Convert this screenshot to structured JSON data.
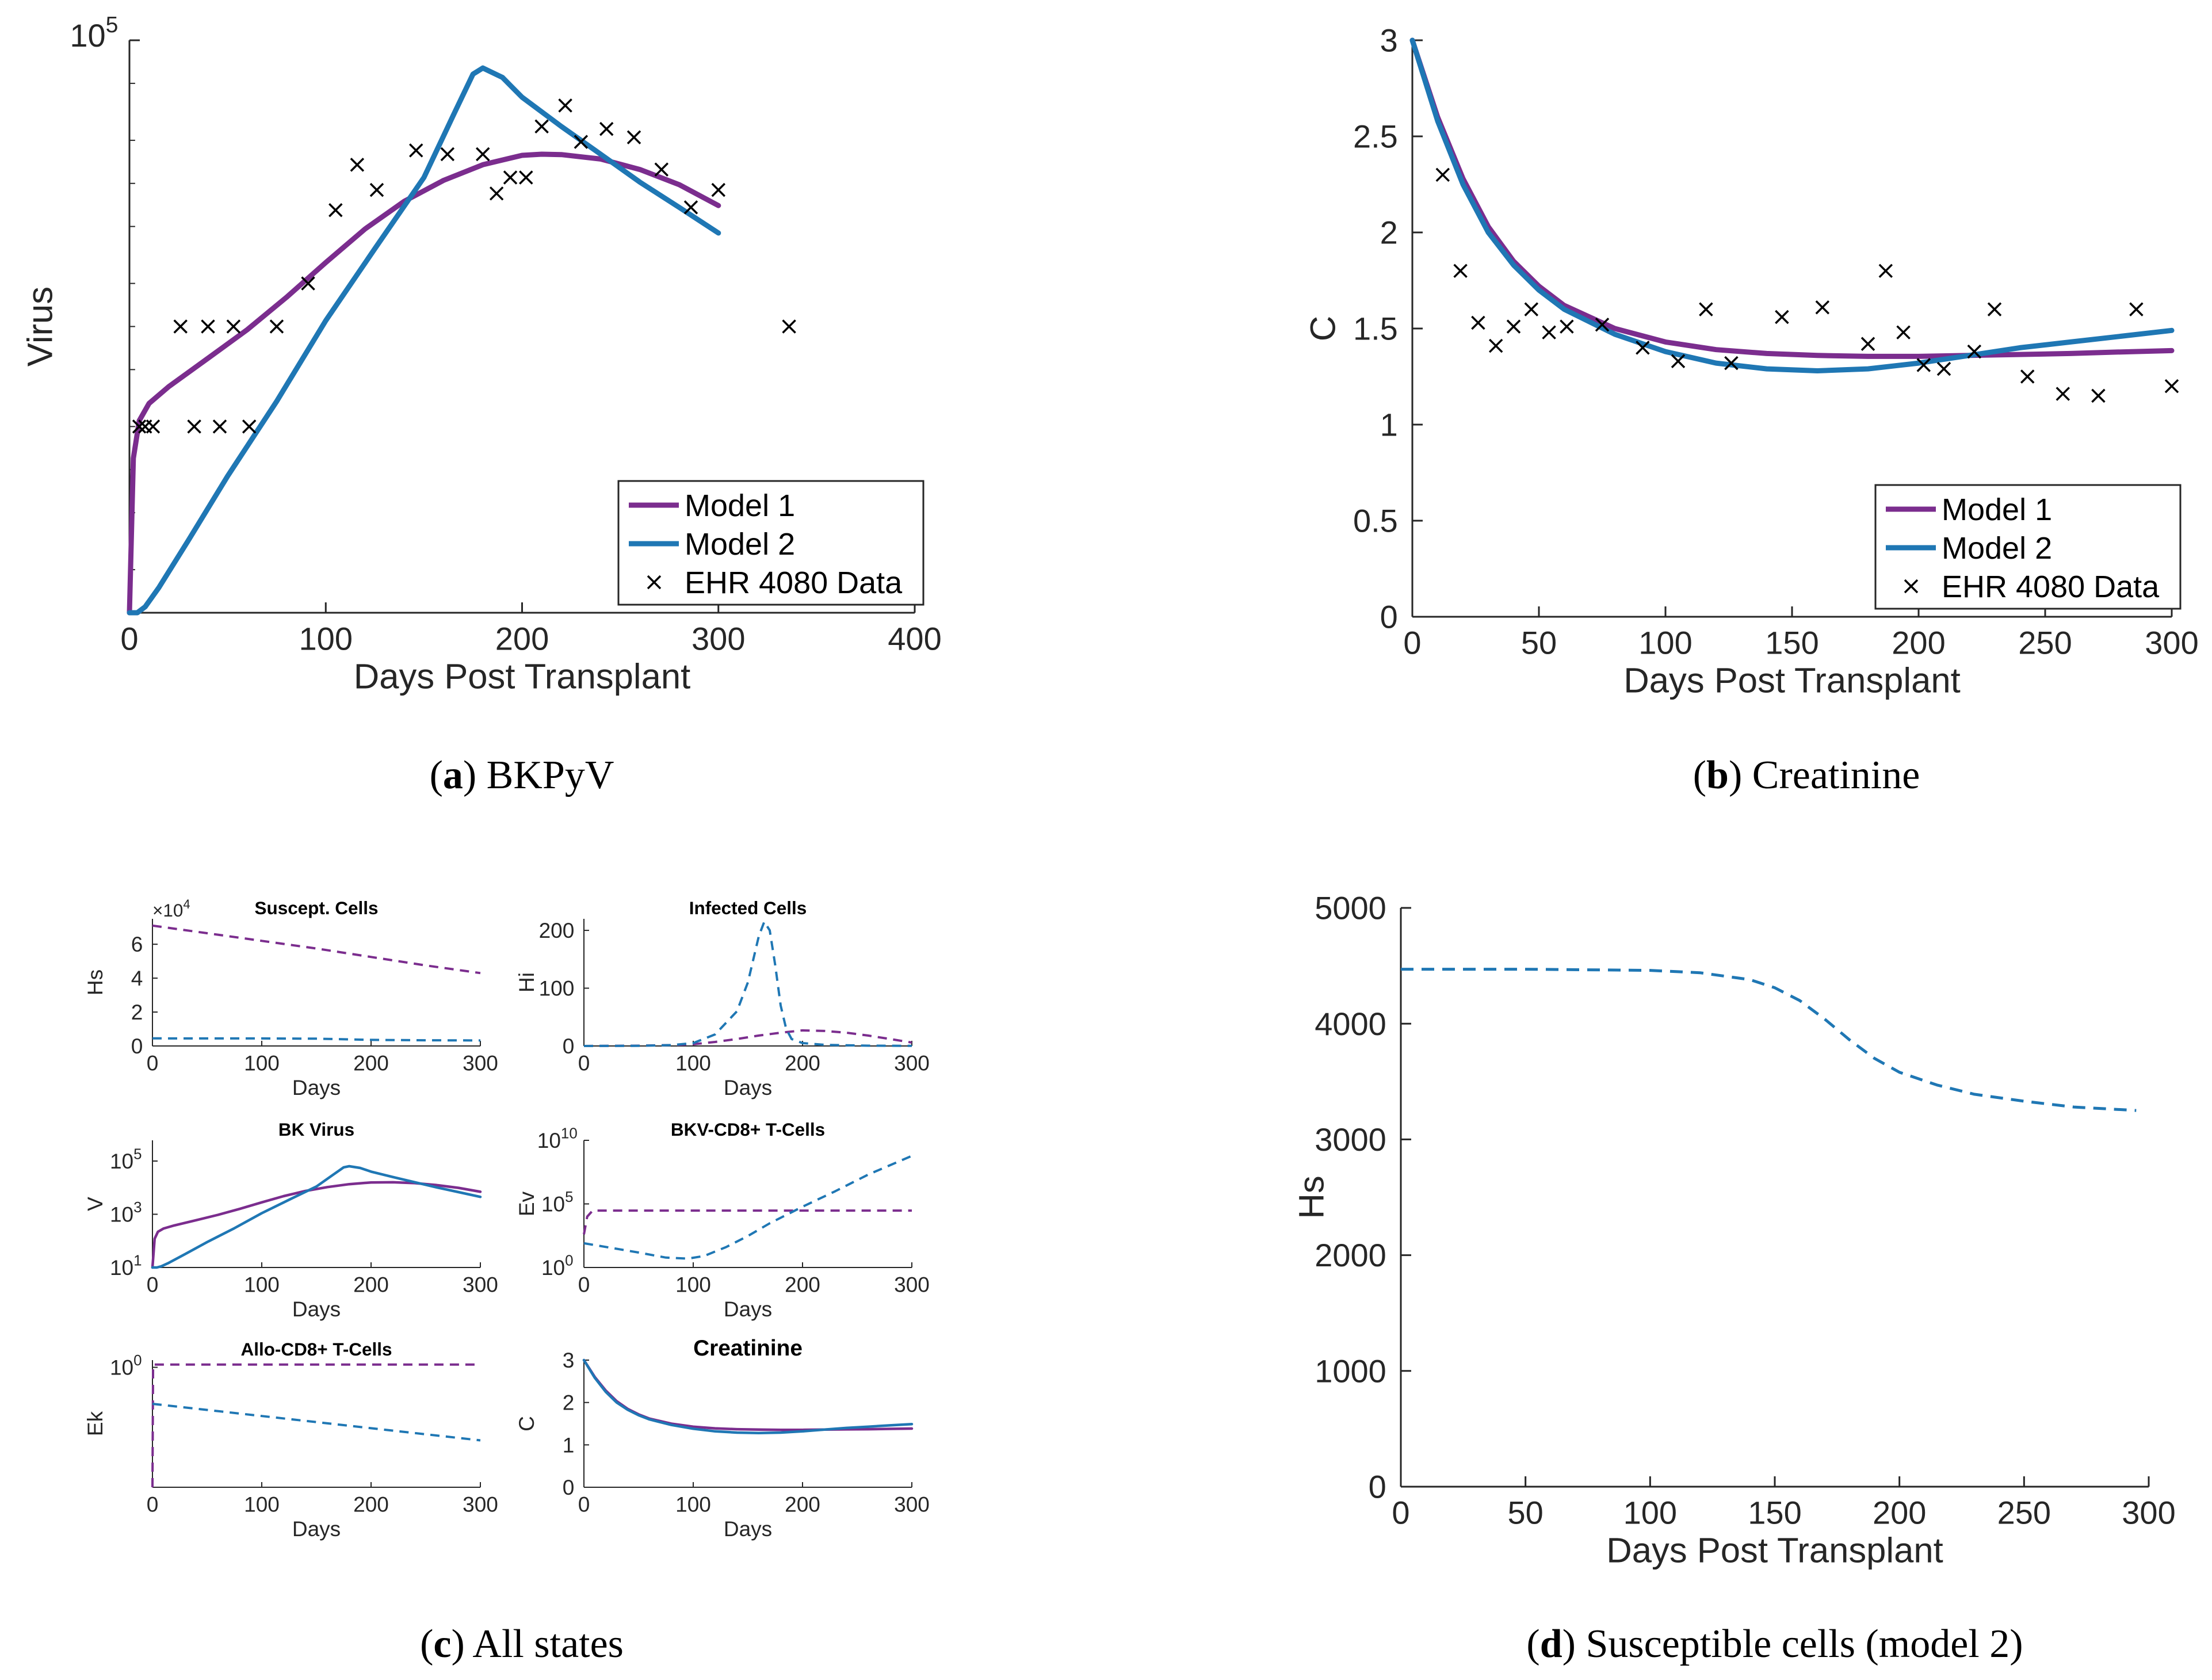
{
  "colors": {
    "model1": "#7b2d8e",
    "model2": "#1f77b4",
    "data": "#000000",
    "axis": "#262626",
    "text": "#262626"
  },
  "chart_data": [
    {
      "id": "a",
      "type": "line",
      "ylabel": "Virus",
      "xlabel": "Days Post Transplant",
      "xlim": [
        0,
        400
      ],
      "xticks": [
        0,
        100,
        200,
        300,
        400
      ],
      "yscale": "log",
      "ylim": [
        10,
        100000
      ],
      "ytick_label": {
        "base": "10",
        "exp": "5"
      },
      "legend": {
        "position": "bottom-right",
        "entries": [
          "Model 1",
          "Model 2",
          "EHR 4080 Data"
        ]
      },
      "caption": {
        "letter": "a",
        "title": "BKPyV"
      },
      "series": [
        {
          "name": "Model 1",
          "color": "model1",
          "style": "solid",
          "x": [
            0,
            2,
            5,
            10,
            20,
            40,
            60,
            80,
            100,
            120,
            140,
            160,
            180,
            200,
            210,
            220,
            240,
            260,
            280,
            300
          ],
          "y": [
            10,
            120,
            220,
            290,
            380,
            600,
            950,
            1600,
            2800,
            4800,
            7500,
            10500,
            13500,
            15700,
            16000,
            15900,
            14800,
            12500,
            9800,
            7000
          ]
        },
        {
          "name": "Model 2",
          "color": "model2",
          "style": "solid",
          "x": [
            0,
            4,
            8,
            15,
            30,
            50,
            75,
            100,
            125,
            150,
            165,
            175,
            180,
            190,
            200,
            220,
            240,
            260,
            280,
            300
          ],
          "y": [
            10,
            10,
            11,
            15,
            32,
            90,
            300,
            1100,
            3500,
            11000,
            30000,
            58000,
            64000,
            55000,
            40000,
            25000,
            16000,
            10200,
            6800,
            4500
          ]
        }
      ],
      "points": {
        "x": [
          5,
          8,
          12,
          26,
          33,
          40,
          46,
          53,
          61,
          75,
          91,
          105,
          116,
          126,
          146,
          162,
          180,
          187,
          194,
          202,
          210,
          222,
          230,
          243,
          257,
          271,
          286,
          300,
          336
        ],
        "y": [
          200,
          200,
          200,
          1000,
          200,
          1000,
          200,
          1000,
          200,
          1000,
          2000,
          6500,
          13500,
          9000,
          17000,
          16000,
          16000,
          8500,
          11000,
          11000,
          25000,
          35000,
          19500,
          24000,
          21000,
          12500,
          6800,
          9000,
          1000
        ]
      }
    },
    {
      "id": "b",
      "type": "line",
      "ylabel": "C",
      "xlabel": "Days Post Transplant",
      "xlim": [
        0,
        300
      ],
      "xticks": [
        0,
        50,
        100,
        150,
        200,
        250,
        300
      ],
      "ylim": [
        0,
        3
      ],
      "yticks": [
        0,
        0.5,
        1,
        1.5,
        2,
        2.5,
        3
      ],
      "legend": {
        "position": "bottom-right",
        "entries": [
          "Model 1",
          "Model 2",
          "EHR 4080 Data"
        ]
      },
      "caption": {
        "letter": "b",
        "title": "Creatinine"
      },
      "series": [
        {
          "name": "Model 1",
          "color": "model1",
          "style": "solid",
          "x": [
            0,
            10,
            20,
            30,
            40,
            50,
            60,
            80,
            100,
            120,
            140,
            160,
            180,
            200,
            220,
            240,
            260,
            280,
            300
          ],
          "y": [
            3.0,
            2.6,
            2.28,
            2.03,
            1.85,
            1.72,
            1.62,
            1.5,
            1.43,
            1.39,
            1.37,
            1.36,
            1.355,
            1.355,
            1.36,
            1.365,
            1.37,
            1.378,
            1.385
          ]
        },
        {
          "name": "Model 2",
          "color": "model2",
          "style": "solid",
          "x": [
            0,
            10,
            20,
            30,
            40,
            50,
            60,
            80,
            100,
            120,
            140,
            160,
            180,
            200,
            220,
            240,
            260,
            280,
            300
          ],
          "y": [
            3.0,
            2.58,
            2.25,
            2.0,
            1.83,
            1.7,
            1.6,
            1.47,
            1.38,
            1.32,
            1.29,
            1.28,
            1.29,
            1.32,
            1.36,
            1.4,
            1.43,
            1.46,
            1.49
          ]
        }
      ],
      "points": {
        "x": [
          12,
          19,
          26,
          33,
          40,
          47,
          54,
          61,
          75,
          91,
          105,
          116,
          126,
          146,
          162,
          180,
          187,
          194,
          202,
          210,
          222,
          230,
          243,
          257,
          271,
          286,
          300
        ],
        "y": [
          2.3,
          1.8,
          1.53,
          1.41,
          1.51,
          1.6,
          1.48,
          1.51,
          1.52,
          1.4,
          1.33,
          1.6,
          1.32,
          1.56,
          1.61,
          1.42,
          1.8,
          1.48,
          1.31,
          1.29,
          1.38,
          1.6,
          1.25,
          1.16,
          1.15,
          1.6,
          1.2
        ]
      }
    },
    {
      "id": "c1",
      "type": "line",
      "title": "Suscept. Cells",
      "ylabel": "Hs",
      "xlabel": "Days",
      "xlim": [
        0,
        300
      ],
      "xticks": [
        0,
        100,
        200,
        300
      ],
      "ylim": [
        0,
        75000
      ],
      "yticks": [
        0,
        20000,
        40000,
        60000
      ],
      "ytick_labels": [
        "0",
        "2",
        "4",
        "6"
      ],
      "exponent_label": "×10",
      "exponent_sup": "4",
      "series": [
        {
          "name": "Model 1",
          "color": "model1",
          "style": "dashed",
          "x": [
            0,
            50,
            100,
            150,
            200,
            250,
            300
          ],
          "y": [
            71000,
            66500,
            62000,
            57500,
            52500,
            47500,
            43000
          ]
        },
        {
          "name": "Model 2",
          "color": "model2",
          "style": "dashed",
          "x": [
            0,
            100,
            150,
            200,
            250,
            300
          ],
          "y": [
            4470,
            4450,
            4300,
            3600,
            3350,
            3250
          ]
        }
      ]
    },
    {
      "id": "c2",
      "type": "line",
      "title": "Infected Cells",
      "ylabel": "Hi",
      "xlabel": "Days",
      "xlim": [
        0,
        300
      ],
      "xticks": [
        0,
        100,
        200,
        300
      ],
      "ylim": [
        0,
        220
      ],
      "yticks": [
        0,
        100,
        200
      ],
      "series": [
        {
          "name": "Model 1",
          "color": "model1",
          "style": "dashed",
          "x": [
            0,
            50,
            80,
            100,
            120,
            140,
            160,
            180,
            200,
            220,
            240,
            260,
            280,
            300
          ],
          "y": [
            0,
            0.5,
            1.5,
            3,
            7,
            12,
            18,
            23,
            27,
            26,
            23,
            18,
            12,
            6
          ]
        },
        {
          "name": "Model 2",
          "color": "model2",
          "style": "dashed",
          "x": [
            0,
            50,
            80,
            100,
            120,
            140,
            150,
            160,
            165,
            170,
            175,
            180,
            185,
            190,
            200,
            220,
            260,
            300
          ],
          "y": [
            0,
            0.3,
            1.5,
            5,
            20,
            60,
            110,
            190,
            215,
            200,
            140,
            70,
            30,
            12,
            5,
            2,
            0.5,
            0.2
          ]
        }
      ]
    },
    {
      "id": "c3",
      "type": "line",
      "title": "BK Virus",
      "ylabel": "V",
      "xlabel": "Days",
      "xlim": [
        0,
        300
      ],
      "xticks": [
        0,
        100,
        200,
        300
      ],
      "yscale": "log",
      "ylim": [
        10,
        600000
      ],
      "yticks_log": [
        {
          "value": 10,
          "base": "10",
          "exp": "1"
        },
        {
          "value": 1000,
          "base": "10",
          "exp": "3"
        },
        {
          "value": 100000,
          "base": "10",
          "exp": "5"
        }
      ],
      "series": [
        {
          "name": "Model 1",
          "color": "model1",
          "style": "solid",
          "x": [
            0,
            2,
            5,
            10,
            20,
            40,
            60,
            80,
            100,
            120,
            140,
            160,
            180,
            200,
            220,
            240,
            260,
            280,
            300
          ],
          "y": [
            10,
            120,
            220,
            290,
            380,
            600,
            950,
            1600,
            2800,
            4800,
            7500,
            10500,
            13500,
            15700,
            15900,
            14800,
            12500,
            9800,
            7000
          ]
        },
        {
          "name": "Model 2",
          "color": "model2",
          "style": "solid",
          "x": [
            0,
            4,
            8,
            15,
            30,
            50,
            75,
            100,
            125,
            150,
            165,
            175,
            180,
            190,
            200,
            220,
            240,
            260,
            280,
            300
          ],
          "y": [
            10,
            10,
            11,
            15,
            32,
            90,
            300,
            1100,
            3500,
            11000,
            30000,
            58000,
            64000,
            55000,
            40000,
            25000,
            16000,
            10200,
            6800,
            4500
          ]
        }
      ]
    },
    {
      "id": "c4",
      "type": "line",
      "title": "BKV-CD8+ T-Cells",
      "ylabel": "Ev",
      "xlabel": "Days",
      "xlim": [
        0,
        300
      ],
      "xticks": [
        0,
        100,
        200,
        300
      ],
      "yscale": "log",
      "ylim": [
        1,
        10000000000
      ],
      "yticks_log": [
        {
          "value": 1,
          "base": "10",
          "exp": "0"
        },
        {
          "value": 100000,
          "base": "10",
          "exp": "5"
        },
        {
          "value": 10000000000,
          "base": "10",
          "exp": "10"
        }
      ],
      "series": [
        {
          "name": "Model 1",
          "color": "model1",
          "style": "dashed",
          "x": [
            0,
            3,
            8,
            300
          ],
          "y": [
            400,
            10000,
            30000,
            30000
          ]
        },
        {
          "name": "Model 2",
          "color": "model2",
          "style": "dashed",
          "x": [
            0,
            25,
            50,
            75,
            95,
            110,
            130,
            150,
            170,
            200,
            230,
            260,
            300
          ],
          "y": [
            80,
            35,
            15,
            6,
            5,
            8,
            40,
            300,
            3000,
            60000,
            1000000,
            20000000,
            600000000
          ]
        }
      ]
    },
    {
      "id": "c5",
      "type": "line",
      "title": "Allo-CD8+ T-Cells",
      "ylabel": "Ek",
      "xlabel": "Days",
      "xlim": [
        0,
        300
      ],
      "xticks": [
        0,
        100,
        200,
        300
      ],
      "yscale": "log",
      "ylim": [
        1e-05,
        2
      ],
      "yticks_log": [
        {
          "value": 1,
          "base": "10",
          "exp": "0"
        }
      ],
      "series": [
        {
          "name": "Model 1",
          "color": "model1",
          "style": "dashed",
          "x": [
            0,
            0.6,
            1,
            300
          ],
          "y": [
            1e-05,
            1.3,
            1.3,
            1.3
          ]
        },
        {
          "name": "Model 2",
          "color": "model2",
          "style": "dashed",
          "x": [
            0,
            300
          ],
          "y": [
            0.03,
            0.0009
          ]
        }
      ]
    },
    {
      "id": "c6",
      "type": "line",
      "title": "Creatinine",
      "ylabel": "C",
      "xlabel": "Days",
      "xlim": [
        0,
        300
      ],
      "xticks": [
        0,
        100,
        200,
        300
      ],
      "ylim": [
        0,
        3
      ],
      "yticks": [
        0,
        1,
        2,
        3
      ],
      "series": [
        {
          "name": "Model 1",
          "color": "model1",
          "style": "solid",
          "x": [
            0,
            10,
            20,
            30,
            40,
            50,
            60,
            80,
            100,
            120,
            140,
            160,
            180,
            200,
            220,
            240,
            260,
            280,
            300
          ],
          "y": [
            3.0,
            2.6,
            2.28,
            2.03,
            1.85,
            1.72,
            1.62,
            1.5,
            1.43,
            1.39,
            1.37,
            1.36,
            1.355,
            1.355,
            1.36,
            1.365,
            1.37,
            1.378,
            1.385
          ]
        },
        {
          "name": "Model 2",
          "color": "model2",
          "style": "solid",
          "x": [
            0,
            10,
            20,
            30,
            40,
            50,
            60,
            80,
            100,
            120,
            140,
            160,
            180,
            200,
            220,
            240,
            260,
            280,
            300
          ],
          "y": [
            3.0,
            2.58,
            2.25,
            2.0,
            1.83,
            1.7,
            1.6,
            1.47,
            1.38,
            1.32,
            1.29,
            1.28,
            1.29,
            1.32,
            1.36,
            1.4,
            1.43,
            1.46,
            1.49
          ]
        }
      ]
    },
    {
      "id": "d",
      "type": "line",
      "ylabel": "Hs",
      "xlabel": "Days Post Transplant",
      "xlim": [
        0,
        300
      ],
      "xticks": [
        0,
        50,
        100,
        150,
        200,
        250,
        300
      ],
      "ylim": [
        0,
        5000
      ],
      "yticks": [
        0,
        1000,
        2000,
        3000,
        4000,
        5000
      ],
      "caption": {
        "letter": "d",
        "title": "Susceptible cells (model 2)"
      },
      "series": [
        {
          "name": "Model 2",
          "color": "model2",
          "style": "dashed",
          "x": [
            0,
            50,
            100,
            120,
            140,
            150,
            160,
            170,
            180,
            190,
            200,
            215,
            230,
            250,
            270,
            295
          ],
          "y": [
            4470,
            4470,
            4460,
            4440,
            4380,
            4310,
            4200,
            4040,
            3860,
            3700,
            3580,
            3470,
            3390,
            3330,
            3280,
            3250
          ]
        }
      ]
    }
  ],
  "captions_extra": {
    "c": {
      "letter": "c",
      "title": "All states"
    }
  }
}
